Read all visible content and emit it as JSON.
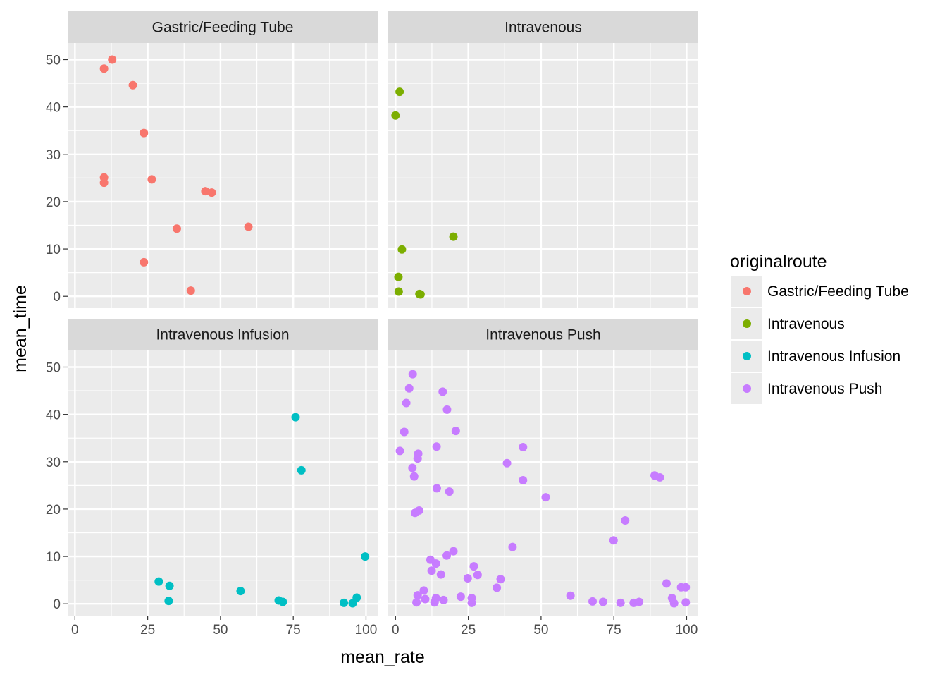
{
  "chart_data": {
    "type": "scatter",
    "xlabel": "mean_rate",
    "ylabel": "mean_time",
    "xlim": [
      -2.5,
      104
    ],
    "ylim": [
      -2.5,
      53.5
    ],
    "x_ticks": [
      "0",
      "25",
      "50",
      "75",
      "100"
    ],
    "y_ticks": [
      "0",
      "10",
      "20",
      "30",
      "40",
      "50"
    ],
    "facet_layout": "2x2",
    "grid": true,
    "legend": {
      "title": "originalroute",
      "placement": "right",
      "entries": [
        "Gastric/Feeding Tube",
        "Intravenous",
        "Intravenous Infusion",
        "Intravenous Push"
      ]
    },
    "series": [
      {
        "name": "Gastric/Feeding Tube",
        "color": "#F8766D",
        "points": [
          [
            12.8,
            50.0
          ],
          [
            10.0,
            48.1
          ],
          [
            19.9,
            44.6
          ],
          [
            23.7,
            34.5
          ],
          [
            10.0,
            25.1
          ],
          [
            10.0,
            24.0
          ],
          [
            26.4,
            24.7
          ],
          [
            44.8,
            22.2
          ],
          [
            47.0,
            21.9
          ],
          [
            35.0,
            14.3
          ],
          [
            59.6,
            14.7
          ],
          [
            23.7,
            7.2
          ],
          [
            39.8,
            1.2
          ]
        ]
      },
      {
        "name": "Intravenous",
        "color": "#7CAE00",
        "points": [
          [
            1.4,
            43.2
          ],
          [
            0.0,
            38.2
          ],
          [
            19.9,
            12.6
          ],
          [
            2.2,
            9.9
          ],
          [
            1.0,
            4.1
          ],
          [
            1.1,
            1.0
          ],
          [
            8.2,
            0.5
          ],
          [
            8.6,
            0.4
          ]
        ]
      },
      {
        "name": "Intravenous Infusion",
        "color": "#00BFC4",
        "points": [
          [
            75.8,
            39.4
          ],
          [
            77.8,
            28.2
          ],
          [
            99.7,
            10.0
          ],
          [
            28.8,
            4.7
          ],
          [
            32.5,
            3.8
          ],
          [
            32.2,
            0.6
          ],
          [
            56.9,
            2.7
          ],
          [
            70.0,
            0.7
          ],
          [
            71.4,
            0.4
          ],
          [
            92.4,
            0.2
          ],
          [
            95.4,
            0.1
          ],
          [
            96.8,
            1.3
          ]
        ]
      },
      {
        "name": "Intravenous Push",
        "color": "#C77CFF",
        "points": [
          [
            5.9,
            48.5
          ],
          [
            4.7,
            45.5
          ],
          [
            16.2,
            44.8
          ],
          [
            3.7,
            42.4
          ],
          [
            17.7,
            41.0
          ],
          [
            3.0,
            36.3
          ],
          [
            20.7,
            36.5
          ],
          [
            1.5,
            32.3
          ],
          [
            14.1,
            33.2
          ],
          [
            43.8,
            33.1
          ],
          [
            7.8,
            31.7
          ],
          [
            7.6,
            30.7
          ],
          [
            38.3,
            29.7
          ],
          [
            5.8,
            28.7
          ],
          [
            6.4,
            26.9
          ],
          [
            43.8,
            26.1
          ],
          [
            14.2,
            24.4
          ],
          [
            18.5,
            23.7
          ],
          [
            51.6,
            22.5
          ],
          [
            89.0,
            27.1
          ],
          [
            90.8,
            26.7
          ],
          [
            6.7,
            19.2
          ],
          [
            8.1,
            19.7
          ],
          [
            78.9,
            17.6
          ],
          [
            74.9,
            13.4
          ],
          [
            40.2,
            12.0
          ],
          [
            19.9,
            11.1
          ],
          [
            17.6,
            10.2
          ],
          [
            12.0,
            9.3
          ],
          [
            13.9,
            8.5
          ],
          [
            12.4,
            7.0
          ],
          [
            26.9,
            7.9
          ],
          [
            15.6,
            6.2
          ],
          [
            28.2,
            6.1
          ],
          [
            24.8,
            5.4
          ],
          [
            36.1,
            5.2
          ],
          [
            34.8,
            3.4
          ],
          [
            93.1,
            4.3
          ],
          [
            98.1,
            3.5
          ],
          [
            99.7,
            3.5
          ],
          [
            9.7,
            2.8
          ],
          [
            7.6,
            1.8
          ],
          [
            10.2,
            1.0
          ],
          [
            13.9,
            1.2
          ],
          [
            16.5,
            0.8
          ],
          [
            22.4,
            1.5
          ],
          [
            26.2,
            1.2
          ],
          [
            7.2,
            0.3
          ],
          [
            13.4,
            0.3
          ],
          [
            26.2,
            0.2
          ],
          [
            60.1,
            1.7
          ],
          [
            67.7,
            0.5
          ],
          [
            71.3,
            0.4
          ],
          [
            77.3,
            0.2
          ],
          [
            81.8,
            0.2
          ],
          [
            83.7,
            0.4
          ],
          [
            95.0,
            1.2
          ],
          [
            95.7,
            0.1
          ],
          [
            99.7,
            0.3
          ]
        ]
      }
    ],
    "facets": [
      {
        "label": "Gastric/Feeding Tube",
        "series": "Gastric/Feeding Tube"
      },
      {
        "label": "Intravenous",
        "series": "Intravenous"
      },
      {
        "label": "Intravenous Infusion",
        "series": "Intravenous Infusion"
      },
      {
        "label": "Intravenous Push",
        "series": "Intravenous Push"
      }
    ]
  }
}
